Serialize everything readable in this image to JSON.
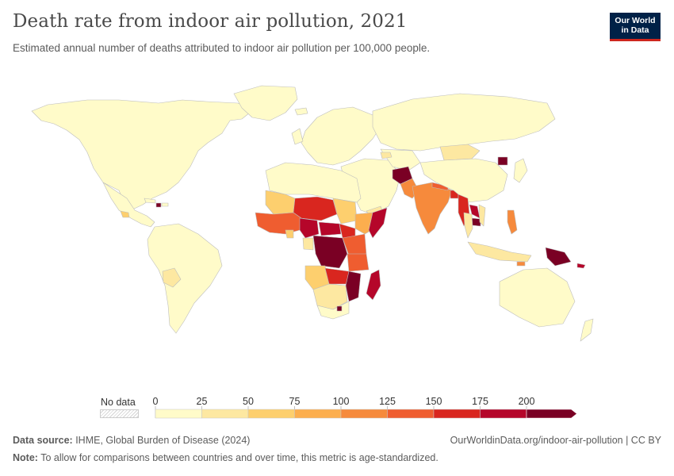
{
  "header": {
    "title": "Death rate from indoor air pollution, 2021",
    "subtitle": "Estimated annual number of deaths attributed to indoor air pollution per 100,000 people.",
    "logo_line1": "Our World",
    "logo_line2": "in Data"
  },
  "legend": {
    "no_data_label": "No data",
    "ticks": [
      "0",
      "25",
      "50",
      "75",
      "100",
      "125",
      "150",
      "175",
      "200"
    ],
    "bins": [
      {
        "from": 0,
        "to": 25,
        "color": "#fffbc9"
      },
      {
        "from": 25,
        "to": 50,
        "color": "#fde8a1"
      },
      {
        "from": 50,
        "to": 75,
        "color": "#fdcf6e"
      },
      {
        "from": 75,
        "to": 100,
        "color": "#fcae4e"
      },
      {
        "from": 100,
        "to": 125,
        "color": "#f68a3c"
      },
      {
        "from": 125,
        "to": 150,
        "color": "#ef5d30"
      },
      {
        "from": 150,
        "to": 175,
        "color": "#d9261f"
      },
      {
        "from": 175,
        "to": 200,
        "color": "#b5062a"
      },
      {
        "from": 200,
        "to": null,
        "color": "#7a0024"
      }
    ],
    "no_data_color": "#e8e8e8"
  },
  "footer": {
    "source_label": "Data source:",
    "source_text": " IHME, Global Burden of Disease (2024)",
    "note_label": "Note:",
    "note_text": " To allow for comparisons between countries and over time, this metric is age-standardized.",
    "url_text": "OurWorldinData.org/indoor-air-pollution | CC BY"
  },
  "map_colors": {
    "low": "#fffbc9",
    "border": "#b9b9b9",
    "ocean": "#ffffff"
  }
}
